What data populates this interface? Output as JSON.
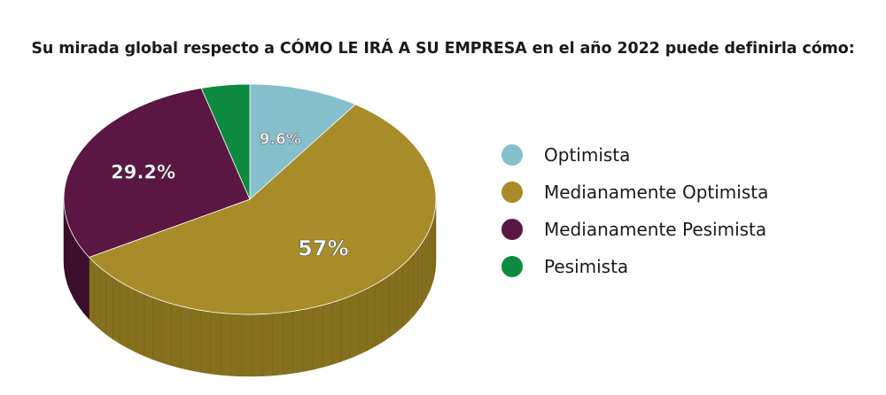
{
  "title": "Su mirada global respecto a CÓMO LE IRÁ A SU EMPRESA en el año 2022 puede definirla cómo:",
  "chart_data": {
    "type": "pie",
    "title": "Su mirada global respecto a CÓMO LE IRÁ A SU EMPRESA en el año 2022 puede definirla cómo:",
    "slices": [
      {
        "label": "Optimista",
        "value": 9.6,
        "display": "9.6%",
        "color": "#86bfcc",
        "side_color": "#5d8f9a",
        "show_label": true
      },
      {
        "label": "Medianamente Optimista",
        "value": 57,
        "display": "57%",
        "color": "#a88c2a",
        "side_color": "#86701e",
        "show_label": true
      },
      {
        "label": "Medianamente Pesimista",
        "value": 29.2,
        "display": "29.2%",
        "color": "#5a1741",
        "side_color": "#3d0f2c",
        "show_label": true
      },
      {
        "label": "Pesimista",
        "value": 4.2,
        "display": "",
        "color": "#0d8a3f",
        "side_color": "#0a6530",
        "show_label": false
      }
    ],
    "legend_position": "right",
    "style": "3d"
  }
}
